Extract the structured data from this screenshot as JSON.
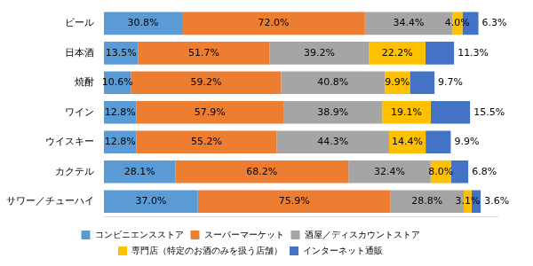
{
  "chart_data": {
    "type": "bar",
    "orientation": "horizontal",
    "stacked": true,
    "data_labels": true,
    "tick_labels": "y",
    "grid": false,
    "legend": "bottom",
    "xlim": [
      0,
      155
    ],
    "categories": [
      "ビール",
      "日本酒",
      "焼酎",
      "ワイン",
      "ウイスキー",
      "カクテル",
      "サワー／チューハイ"
    ],
    "series": [
      {
        "name": "コンビニエンスストア",
        "color": "#5b9bd5",
        "values": [
          30.8,
          13.5,
          10.6,
          12.8,
          12.8,
          28.1,
          37.0
        ],
        "value_labels": [
          "30.8%",
          "13.5%",
          "10.6%",
          "12.8%",
          "12.8%",
          "28.1%",
          "37.0%"
        ]
      },
      {
        "name": "スーパーマーケット",
        "color": "#ed7d31",
        "values": [
          72.0,
          51.7,
          59.2,
          57.9,
          55.2,
          68.2,
          75.9
        ],
        "value_labels": [
          "72.0%",
          "51.7%",
          "59.2%",
          "57.9%",
          "55.2%",
          "68.2%",
          "75.9%"
        ]
      },
      {
        "name": "酒屋／ディスカウントストア",
        "color": "#a5a5a5",
        "values": [
          34.4,
          39.2,
          40.8,
          38.9,
          44.3,
          32.4,
          28.8
        ],
        "value_labels": [
          "34.4%",
          "39.2%",
          "40.8%",
          "38.9%",
          "44.3%",
          "32.4%",
          "28.8%"
        ]
      },
      {
        "name": "専門店（特定のお酒のみを扱う店舗）",
        "color": "#ffc000",
        "values": [
          4.0,
          22.2,
          9.9,
          19.1,
          14.4,
          8.0,
          3.1
        ],
        "value_labels": [
          "4.0%",
          "22.2%",
          "9.9%",
          "19.1%",
          "14.4%",
          "8.0%",
          "3.1%"
        ]
      },
      {
        "name": "インターネット通販",
        "color": "#4472c4",
        "values": [
          6.3,
          11.3,
          9.7,
          15.5,
          9.9,
          6.8,
          3.6
        ],
        "value_labels": [
          "6.3%",
          "11.3%",
          "9.7%",
          "15.5%",
          "9.9%",
          "6.8%",
          "3.6%"
        ]
      }
    ]
  }
}
